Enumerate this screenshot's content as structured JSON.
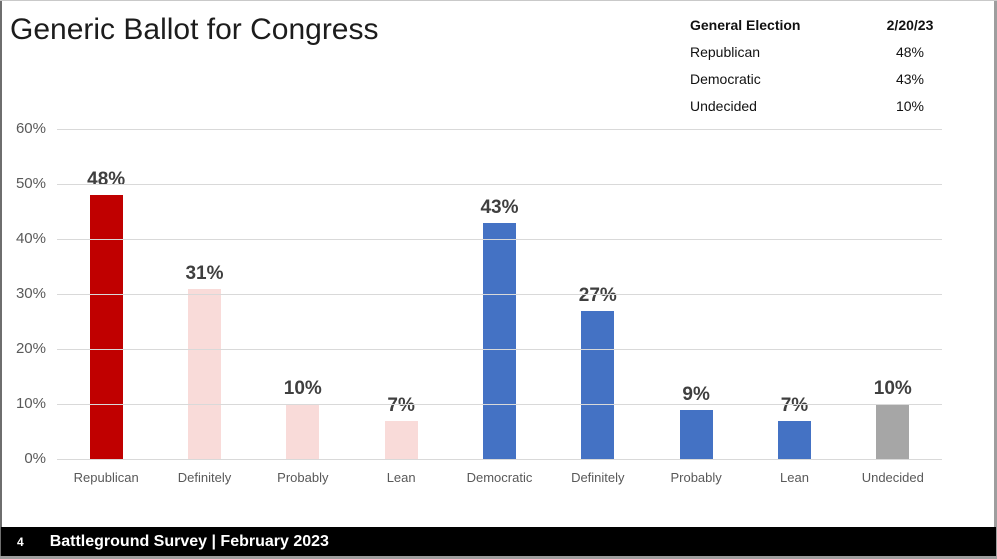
{
  "slide": {
    "title": "Generic Ballot for Congress",
    "footer": {
      "page_number": "4",
      "text": "Battleground Survey | February 2023"
    }
  },
  "summary_table": {
    "header": {
      "label": "General Election",
      "date": "2/20/23"
    },
    "rows": [
      {
        "label": "Republican",
        "value": "48%"
      },
      {
        "label": "Democratic",
        "value": "43%"
      },
      {
        "label": "Undecided",
        "value": "10%"
      }
    ]
  },
  "chart_data": {
    "type": "bar",
    "title": "Generic Ballot for Congress",
    "categories": [
      "Republican",
      "Definitely",
      "Probably",
      "Lean",
      "Democratic",
      "Definitely",
      "Probably",
      "Lean",
      "Undecided"
    ],
    "values": [
      48,
      31,
      10,
      7,
      43,
      27,
      9,
      7,
      10
    ],
    "data_labels": [
      "48%",
      "31%",
      "10%",
      "7%",
      "43%",
      "27%",
      "9%",
      "7%",
      "10%"
    ],
    "bar_colors": [
      "#c00000",
      "#f9dbd9",
      "#f9dbd9",
      "#f9dbd9",
      "#4472c4",
      "#4472c4",
      "#4472c4",
      "#4472c4",
      "#a6a6a6"
    ],
    "xlabel": "",
    "ylabel": "",
    "ylim": [
      0,
      60
    ],
    "yticks": [
      0,
      10,
      20,
      30,
      40,
      50,
      60
    ],
    "ytick_suffix": "%",
    "grid": true,
    "legend_position": "none"
  },
  "colors": {
    "republican": "#c00000",
    "republican_lean": "#f9dbd9",
    "democratic": "#4472c4",
    "undecided": "#a6a6a6",
    "gridline": "#d9d9d9",
    "axis_text": "#595959",
    "data_label": "#3f3f3f",
    "footer_bg": "#000000",
    "footer_text": "#ffffff"
  }
}
